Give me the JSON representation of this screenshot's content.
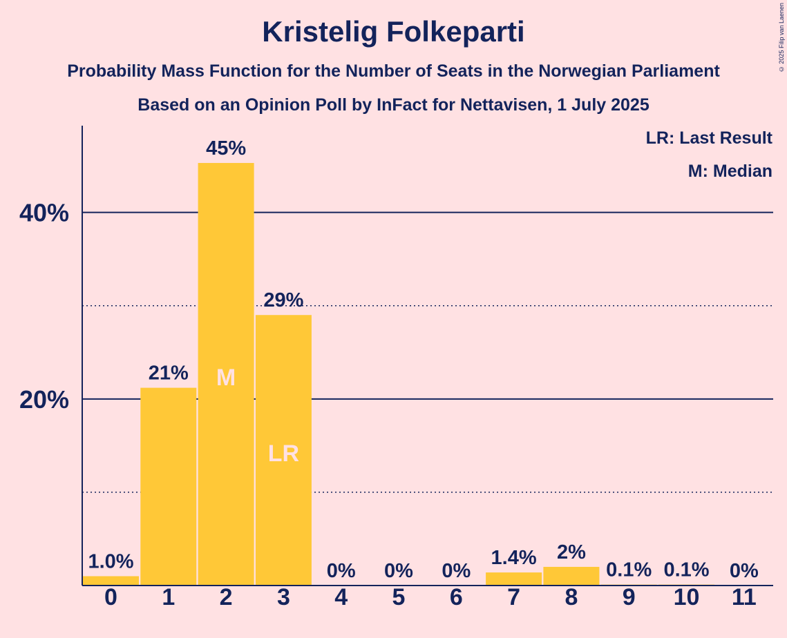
{
  "title": "Kristelig Folkeparti",
  "subtitle1": "Probability Mass Function for the Number of Seats in the Norwegian Parliament",
  "subtitle2": "Based on an Opinion Poll by InFact for Nettavisen, 1 July 2025",
  "copyright": "© 2025 Filip van Laenen",
  "legend": {
    "last_result": "LR: Last Result",
    "median": "M: Median"
  },
  "colors": {
    "background": "#ffe1e3",
    "bar": "#ffc837",
    "text": "#13235b",
    "marker": "#ffe1e3"
  },
  "chart_data": {
    "type": "bar",
    "categories": [
      "0",
      "1",
      "2",
      "3",
      "4",
      "5",
      "6",
      "7",
      "8",
      "9",
      "10",
      "11"
    ],
    "values": [
      1.0,
      21.2,
      45.3,
      29.0,
      0,
      0,
      0,
      1.4,
      2.0,
      0.1,
      0.1,
      0
    ],
    "labels": [
      "1.0%",
      "21%",
      "45%",
      "29%",
      "0%",
      "0%",
      "0%",
      "1.4%",
      "2%",
      "0.1%",
      "0.1%",
      "0%"
    ],
    "markers": {
      "2": "M",
      "3": "LR"
    },
    "yticks": [
      {
        "value": 20,
        "label": "20%"
      },
      {
        "value": 40,
        "label": "40%"
      }
    ],
    "minor_gridlines": [
      10,
      30
    ],
    "ylim": [
      0,
      49.3
    ],
    "grid": true,
    "legend_position": "top-right"
  }
}
